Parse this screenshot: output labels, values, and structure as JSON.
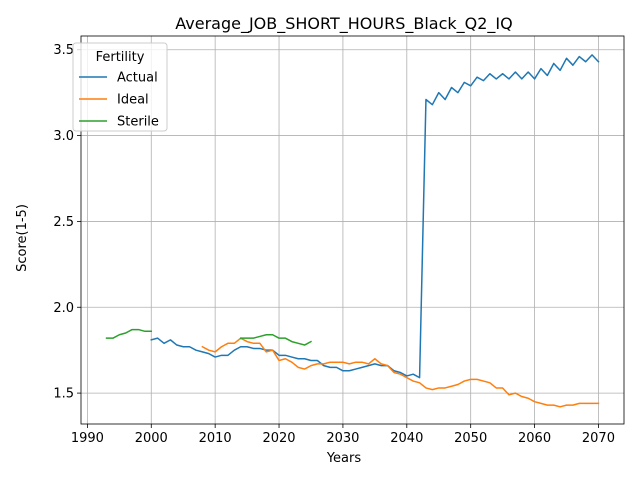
{
  "chart_data": {
    "type": "line",
    "title": "Average_JOB_SHORT_HOURS_Black_Q2_IQ",
    "xlabel": "Years",
    "ylabel": "Score(1-5)",
    "xlim": [
      1989,
      2074
    ],
    "ylim": [
      1.32,
      3.58
    ],
    "xticks": [
      1990,
      2000,
      2010,
      2020,
      2030,
      2040,
      2050,
      2060,
      2070
    ],
    "yticks": [
      1.5,
      2.0,
      2.5,
      3.0,
      3.5
    ],
    "ytick_labels": [
      "1.5",
      "2.0",
      "2.5",
      "3.0",
      "3.5"
    ],
    "grid": true,
    "legend": {
      "title": "Fertility",
      "position": "top-left"
    },
    "series": [
      {
        "name": "Actual",
        "color": "#1f77b4",
        "x": [
          2000,
          2001,
          2002,
          2003,
          2004,
          2005,
          2006,
          2007,
          2008,
          2009,
          2010,
          2011,
          2012,
          2013,
          2014,
          2015,
          2016,
          2017,
          2018,
          2019,
          2020,
          2021,
          2022,
          2023,
          2024,
          2025,
          2026,
          2027,
          2028,
          2029,
          2030,
          2031,
          2032,
          2033,
          2034,
          2035,
          2036,
          2037,
          2038,
          2039,
          2040,
          2041,
          2042,
          2043,
          2044,
          2045,
          2046,
          2047,
          2048,
          2049,
          2050,
          2051,
          2052,
          2053,
          2054,
          2055,
          2056,
          2057,
          2058,
          2059,
          2060,
          2061,
          2062,
          2063,
          2064,
          2065,
          2066,
          2067,
          2068,
          2069,
          2070
        ],
        "values": [
          1.81,
          1.82,
          1.79,
          1.81,
          1.78,
          1.77,
          1.77,
          1.75,
          1.74,
          1.73,
          1.71,
          1.72,
          1.72,
          1.75,
          1.77,
          1.77,
          1.76,
          1.76,
          1.75,
          1.75,
          1.72,
          1.72,
          1.71,
          1.7,
          1.7,
          1.69,
          1.69,
          1.66,
          1.65,
          1.65,
          1.63,
          1.63,
          1.64,
          1.65,
          1.66,
          1.67,
          1.66,
          1.66,
          1.63,
          1.62,
          1.6,
          1.61,
          1.59,
          3.21,
          3.18,
          3.25,
          3.21,
          3.28,
          3.25,
          3.31,
          3.29,
          3.34,
          3.32,
          3.36,
          3.33,
          3.36,
          3.33,
          3.37,
          3.33,
          3.37,
          3.33,
          3.39,
          3.35,
          3.42,
          3.38,
          3.45,
          3.41,
          3.46,
          3.43,
          3.47,
          3.43
        ]
      },
      {
        "name": "Ideal",
        "color": "#ff7f0e",
        "x": [
          2008,
          2009,
          2010,
          2011,
          2012,
          2013,
          2014,
          2015,
          2016,
          2017,
          2018,
          2019,
          2020,
          2021,
          2022,
          2023,
          2024,
          2025,
          2026,
          2027,
          2028,
          2029,
          2030,
          2031,
          2032,
          2033,
          2034,
          2035,
          2036,
          2037,
          2038,
          2039,
          2040,
          2041,
          2042,
          2043,
          2044,
          2045,
          2046,
          2047,
          2048,
          2049,
          2050,
          2051,
          2052,
          2053,
          2054,
          2055,
          2056,
          2057,
          2058,
          2059,
          2060,
          2061,
          2062,
          2063,
          2064,
          2065,
          2066,
          2067,
          2068,
          2069,
          2070
        ],
        "values": [
          1.77,
          1.75,
          1.74,
          1.77,
          1.79,
          1.79,
          1.82,
          1.8,
          1.79,
          1.79,
          1.74,
          1.75,
          1.69,
          1.7,
          1.68,
          1.65,
          1.64,
          1.66,
          1.67,
          1.67,
          1.68,
          1.68,
          1.68,
          1.67,
          1.68,
          1.68,
          1.67,
          1.7,
          1.67,
          1.66,
          1.62,
          1.61,
          1.59,
          1.57,
          1.56,
          1.53,
          1.52,
          1.53,
          1.53,
          1.54,
          1.55,
          1.57,
          1.58,
          1.58,
          1.57,
          1.56,
          1.53,
          1.53,
          1.49,
          1.5,
          1.48,
          1.47,
          1.45,
          1.44,
          1.43,
          1.43,
          1.42,
          1.43,
          1.43,
          1.44,
          1.44,
          1.44,
          1.44
        ]
      },
      {
        "name": "Sterile",
        "color": "#2ca02c",
        "x": [
          1993,
          1994,
          1995,
          1996,
          1997,
          1998,
          1999,
          2000,
          2014,
          2015,
          2016,
          2017,
          2018,
          2019,
          2020,
          2021,
          2022,
          2023,
          2024,
          2025
        ],
        "values": [
          1.82,
          1.82,
          1.84,
          1.85,
          1.87,
          1.87,
          1.86,
          1.86,
          1.82,
          1.82,
          1.82,
          1.83,
          1.84,
          1.84,
          1.82,
          1.82,
          1.8,
          1.79,
          1.78,
          1.8
        ]
      }
    ]
  }
}
